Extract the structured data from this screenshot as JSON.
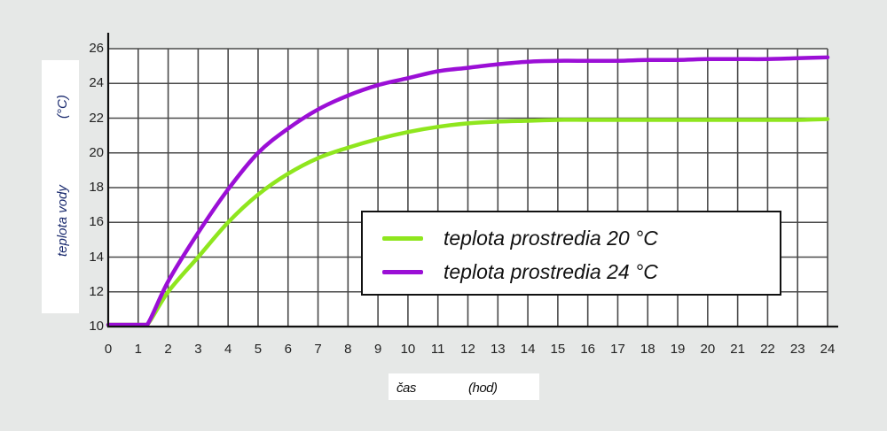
{
  "chart_data": {
    "type": "line",
    "title": "",
    "xlabel": "čas (hod)",
    "xlabel_parts": [
      "čas",
      "(hod)"
    ],
    "ylabel": "teplota vody (°C)",
    "ylabel_parts": [
      "teplota vody",
      "(°C)"
    ],
    "xlim": [
      0,
      24
    ],
    "ylim": [
      10,
      26
    ],
    "x_ticks": [
      0,
      1,
      2,
      3,
      4,
      5,
      6,
      7,
      8,
      9,
      10,
      11,
      12,
      13,
      14,
      15,
      16,
      17,
      18,
      19,
      20,
      21,
      22,
      23,
      24
    ],
    "y_ticks": [
      10,
      12,
      14,
      16,
      18,
      20,
      22,
      24,
      26
    ],
    "grid": true,
    "legend_position": "center-right, inside plot",
    "x": [
      0,
      1,
      1.3,
      2,
      3,
      4,
      5,
      6,
      7,
      8,
      9,
      10,
      11,
      12,
      13,
      14,
      15,
      16,
      17,
      18,
      19,
      20,
      21,
      22,
      23,
      24
    ],
    "series": [
      {
        "name": "teplota prostredia 20 °C",
        "color": "#8fe61e",
        "values": [
          10.1,
          10.1,
          10.1,
          12.0,
          14.0,
          16.0,
          17.6,
          18.8,
          19.7,
          20.3,
          20.8,
          21.2,
          21.5,
          21.7,
          21.8,
          21.85,
          21.9,
          21.9,
          21.9,
          21.9,
          21.9,
          21.9,
          21.9,
          21.9,
          21.9,
          21.95
        ]
      },
      {
        "name": "teplota prostredia 24 °C",
        "color": "#9b0fd6",
        "values": [
          10.1,
          10.1,
          10.1,
          12.6,
          15.4,
          17.9,
          20.0,
          21.4,
          22.5,
          23.3,
          23.9,
          24.3,
          24.7,
          24.9,
          25.1,
          25.25,
          25.3,
          25.3,
          25.3,
          25.35,
          25.35,
          25.4,
          25.4,
          25.4,
          25.45,
          25.5
        ]
      }
    ]
  },
  "legend": {
    "items": [
      {
        "label": "teplota prostredia 20 °C",
        "color": "#8fe61e"
      },
      {
        "label": "teplota prostredia 24 °C",
        "color": "#9b0fd6"
      }
    ]
  },
  "colors": {
    "background": "#e6e8e7",
    "plot_background": "#ffffff",
    "grid": "#3a3a3a",
    "axis": "#111111",
    "series_20": "#8fe61e",
    "series_24": "#9b0fd6",
    "label_text": "#1a2a6e"
  }
}
